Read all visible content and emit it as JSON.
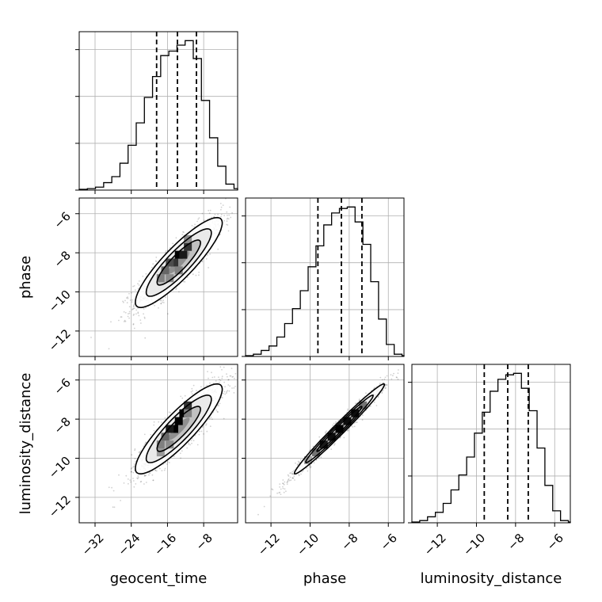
{
  "chart_data": {
    "type": "corner",
    "parameters": [
      "geocent_time",
      "phase",
      "luminosity_distance"
    ],
    "axes": {
      "geocent_time": {
        "range": [
          -35.5,
          -0.5
        ],
        "ticks": [
          -32,
          -24,
          -16,
          -8
        ],
        "tick_labels": [
          "−32",
          "−24",
          "−16",
          "−8"
        ]
      },
      "phase": {
        "range": [
          -13.3,
          -5.2
        ],
        "ticks": [
          -12,
          -10,
          -8,
          -6
        ],
        "tick_labels": [
          "−12",
          "−10",
          "−8",
          "−6"
        ]
      },
      "luminosity_distance": {
        "range": [
          -13.3,
          -5.2
        ],
        "ticks": [
          -12,
          -10,
          -8,
          -6
        ],
        "tick_labels": [
          "−12",
          "−10",
          "−8",
          "−6"
        ]
      }
    },
    "grid": true,
    "marginals": [
      {
        "parameter": "geocent_time",
        "bin_edges": [
          -35.5,
          -33.7,
          -31.9,
          -30.1,
          -28.3,
          -26.5,
          -24.7,
          -22.9,
          -21.1,
          -19.3,
          -17.5,
          -15.7,
          -13.9,
          -12.1,
          -10.3,
          -8.5,
          -6.7,
          -4.9,
          -3.1,
          -1.3,
          -0.5
        ],
        "counts": [
          0.005,
          0.01,
          0.02,
          0.05,
          0.09,
          0.18,
          0.3,
          0.45,
          0.62,
          0.76,
          0.9,
          0.93,
          0.97,
          1.0,
          0.88,
          0.6,
          0.35,
          0.16,
          0.04,
          0.01
        ],
        "quantiles": [
          -18.4,
          -13.8,
          -9.6
        ],
        "ylim": [
          0,
          1.06
        ]
      },
      {
        "parameter": "phase",
        "bin_edges": [
          -13.3,
          -12.9,
          -12.5,
          -12.1,
          -11.7,
          -11.3,
          -10.9,
          -10.5,
          -10.1,
          -9.7,
          -9.3,
          -8.9,
          -8.5,
          -8.1,
          -7.7,
          -7.3,
          -6.9,
          -6.5,
          -6.1,
          -5.7,
          -5.3,
          -5.2
        ],
        "counts": [
          0.005,
          0.015,
          0.04,
          0.07,
          0.13,
          0.22,
          0.32,
          0.44,
          0.6,
          0.74,
          0.88,
          0.96,
          0.99,
          1.0,
          0.9,
          0.75,
          0.5,
          0.25,
          0.08,
          0.015,
          0.005
        ],
        "quantiles": [
          -9.6,
          -8.4,
          -7.35
        ],
        "ylim": [
          0,
          1.06
        ]
      },
      {
        "parameter": "luminosity_distance",
        "bin_edges": [
          -13.3,
          -12.9,
          -12.5,
          -12.1,
          -11.7,
          -11.3,
          -10.9,
          -10.5,
          -10.1,
          -9.7,
          -9.3,
          -8.9,
          -8.5,
          -8.1,
          -7.7,
          -7.3,
          -6.9,
          -6.5,
          -6.1,
          -5.7,
          -5.3,
          -5.2
        ],
        "counts": [
          0.005,
          0.015,
          0.04,
          0.07,
          0.13,
          0.22,
          0.32,
          0.44,
          0.6,
          0.74,
          0.88,
          0.96,
          0.99,
          1.0,
          0.9,
          0.75,
          0.5,
          0.25,
          0.08,
          0.015,
          0.005
        ],
        "quantiles": [
          -9.6,
          -8.4,
          -7.35
        ],
        "ylim": [
          0,
          1.06
        ]
      }
    ],
    "joints": [
      {
        "x": "geocent_time",
        "y": "phase",
        "mean": [
          -13.5,
          -8.5
        ],
        "sd": [
          4.8,
          1.15
        ],
        "corr": 0.88,
        "density_cells": [
          {
            "x": -11.5,
            "y": -7.7,
            "level": 0.8
          },
          {
            "x": -13.5,
            "y": -8.1,
            "level": 1.0
          },
          {
            "x": -12.5,
            "y": -8.1,
            "level": 0.9
          },
          {
            "x": -14.5,
            "y": -8.5,
            "level": 0.8
          },
          {
            "x": -15.5,
            "y": -8.5,
            "level": 0.7
          },
          {
            "x": -16.5,
            "y": -8.9,
            "level": 0.6
          },
          {
            "x": -17.5,
            "y": -9.3,
            "level": 0.5
          },
          {
            "x": -11.5,
            "y": -7.3,
            "level": 0.45
          },
          {
            "x": -15.5,
            "y": -9.3,
            "level": 0.45
          },
          {
            "x": -13.5,
            "y": -8.9,
            "level": 0.5
          }
        ]
      },
      {
        "x": "geocent_time",
        "y": "luminosity_distance",
        "mean": [
          -13.5,
          -8.5
        ],
        "sd": [
          4.8,
          1.15
        ],
        "corr": 0.88,
        "density_cells": [
          {
            "x": -11.5,
            "y": -7.3,
            "level": 0.8
          },
          {
            "x": -12.5,
            "y": -7.7,
            "level": 1.0
          },
          {
            "x": -13.5,
            "y": -8.1,
            "level": 1.0
          },
          {
            "x": -14.5,
            "y": -8.5,
            "level": 1.0
          },
          {
            "x": -15.5,
            "y": -8.5,
            "level": 0.9
          },
          {
            "x": -16.5,
            "y": -8.9,
            "level": 0.6
          },
          {
            "x": -17.5,
            "y": -9.3,
            "level": 0.5
          },
          {
            "x": -11.5,
            "y": -7.7,
            "level": 0.5
          },
          {
            "x": -15.5,
            "y": -9.3,
            "level": 0.45
          },
          {
            "x": -17.5,
            "y": -9.7,
            "level": 0.4
          }
        ]
      },
      {
        "x": "phase",
        "y": "luminosity_distance",
        "mean": [
          -8.5,
          -8.5
        ],
        "sd": [
          1.15,
          1.15
        ],
        "corr": 0.985,
        "density_cells": [
          {
            "x": -7.3,
            "y": -7.3,
            "level": 0.55
          },
          {
            "x": -7.7,
            "y": -7.7,
            "level": 0.95
          },
          {
            "x": -8.1,
            "y": -8.1,
            "level": 0.95
          },
          {
            "x": -8.5,
            "y": -8.5,
            "level": 1.0
          },
          {
            "x": -8.9,
            "y": -8.9,
            "level": 0.95
          },
          {
            "x": -9.3,
            "y": -9.3,
            "level": 0.9
          },
          {
            "x": -9.7,
            "y": -9.7,
            "level": 0.55
          },
          {
            "x": -10.1,
            "y": -10.1,
            "level": 0.35
          }
        ]
      }
    ]
  }
}
